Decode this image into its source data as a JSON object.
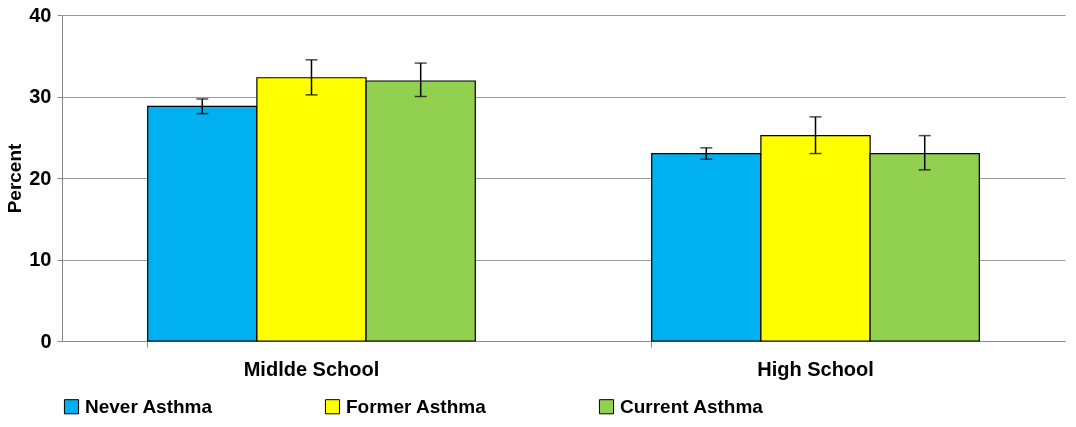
{
  "chart_data": {
    "type": "bar",
    "ylabel": "Percent",
    "categories": [
      "Midlde School",
      "High School"
    ],
    "series": [
      {
        "name": "Never Asthma",
        "color": "#00b0f0",
        "values": [
          28.8,
          23.0
        ],
        "errors": [
          [
            27.9,
            29.7
          ],
          [
            22.3,
            23.7
          ]
        ]
      },
      {
        "name": "Former Asthma",
        "color": "#ffff00",
        "values": [
          32.3,
          25.2
        ],
        "errors": [
          [
            30.2,
            34.5
          ],
          [
            23.0,
            27.5
          ]
        ]
      },
      {
        "name": "Current Asthma",
        "color": "#92d050",
        "values": [
          31.9,
          23.0
        ],
        "errors": [
          [
            30.0,
            34.1
          ],
          [
            21.0,
            25.2
          ]
        ]
      }
    ],
    "ylim": [
      0,
      40
    ],
    "yticks": [
      0,
      10,
      20,
      30,
      40
    ],
    "grid": "y",
    "legend": "bottom"
  }
}
